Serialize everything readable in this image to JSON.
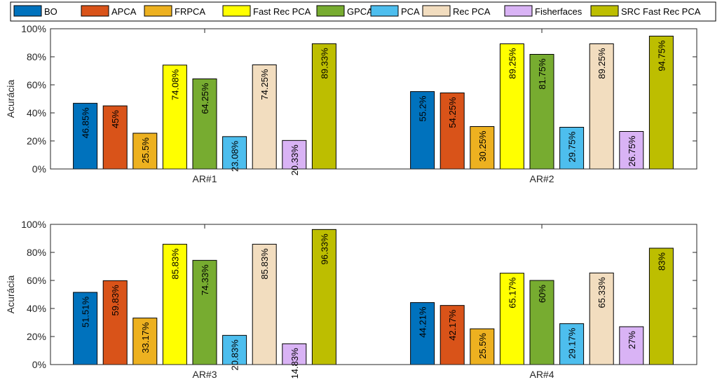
{
  "legend": {
    "position": "top",
    "entries": [
      {
        "name": "BO",
        "color": "#0072BD"
      },
      {
        "name": "APCA",
        "color": "#D95319"
      },
      {
        "name": "FRPCA",
        "color": "#EDB120"
      },
      {
        "name": "Fast Rec PCA",
        "color": "#FFFF00"
      },
      {
        "name": "GPCA",
        "color": "#77AC30"
      },
      {
        "name": "PCA",
        "color": "#4DBEEE"
      },
      {
        "name": "Rec PCA",
        "color": "#F2DDBF"
      },
      {
        "name": "Fisherfaces",
        "color": "#D9B3F5"
      },
      {
        "name": "SRC Fast Rec PCA",
        "color": "#BDBE00"
      }
    ]
  },
  "chart_data": [
    {
      "type": "bar",
      "ylabel": "Acurácia",
      "ylim": [
        0,
        100
      ],
      "yticks": [
        "0%",
        "20%",
        "40%",
        "60%",
        "80%",
        "100%"
      ],
      "categories": [
        "AR#1",
        "AR#2"
      ],
      "series": [
        {
          "name": "BO",
          "values": [
            46.85,
            55.2
          ],
          "labels": [
            "46.85%",
            "55.2%"
          ]
        },
        {
          "name": "APCA",
          "values": [
            45,
            54.25
          ],
          "labels": [
            "45%",
            "54.25%"
          ]
        },
        {
          "name": "FRPCA",
          "values": [
            25.5,
            30.25
          ],
          "labels": [
            "25.5%",
            "30.25%"
          ]
        },
        {
          "name": "Fast Rec PCA",
          "values": [
            74.08,
            89.25
          ],
          "labels": [
            "74.08%",
            "89.25%"
          ]
        },
        {
          "name": "GPCA",
          "values": [
            64.25,
            81.75
          ],
          "labels": [
            "64.25%",
            "81.75%"
          ]
        },
        {
          "name": "PCA",
          "values": [
            23.08,
            29.75
          ],
          "labels": [
            "23.08%",
            "29.75%"
          ]
        },
        {
          "name": "Rec PCA",
          "values": [
            74.25,
            89.25
          ],
          "labels": [
            "74.25%",
            "89.25%"
          ]
        },
        {
          "name": "Fisherfaces",
          "values": [
            20.33,
            26.75
          ],
          "labels": [
            "20.33%",
            "26.75%"
          ]
        },
        {
          "name": "SRC Fast Rec PCA",
          "values": [
            89.33,
            94.75
          ],
          "labels": [
            "89.33%",
            "94.75%"
          ]
        }
      ]
    },
    {
      "type": "bar",
      "ylabel": "Acurácia",
      "ylim": [
        0,
        100
      ],
      "yticks": [
        "0%",
        "20%",
        "40%",
        "60%",
        "80%",
        "100%"
      ],
      "categories": [
        "AR#3",
        "AR#4"
      ],
      "series": [
        {
          "name": "BO",
          "values": [
            51.51,
            44.21
          ],
          "labels": [
            "51.51%",
            "44.21%"
          ]
        },
        {
          "name": "APCA",
          "values": [
            59.83,
            42.17
          ],
          "labels": [
            "59.83%",
            "42.17%"
          ]
        },
        {
          "name": "FRPCA",
          "values": [
            33.17,
            25.5
          ],
          "labels": [
            "33.17%",
            "25.5%"
          ]
        },
        {
          "name": "Fast Rec PCA",
          "values": [
            85.83,
            65.17
          ],
          "labels": [
            "85.83%",
            "65.17%"
          ]
        },
        {
          "name": "GPCA",
          "values": [
            74.33,
            60
          ],
          "labels": [
            "74.33%",
            "60%"
          ]
        },
        {
          "name": "PCA",
          "values": [
            20.83,
            29.17
          ],
          "labels": [
            "20.83%",
            "29.17%"
          ]
        },
        {
          "name": "Rec PCA",
          "values": [
            85.83,
            65.33
          ],
          "labels": [
            "85.83%",
            "65.33%"
          ]
        },
        {
          "name": "Fisherfaces",
          "values": [
            14.83,
            27
          ],
          "labels": [
            "14.83%",
            "27%"
          ]
        },
        {
          "name": "SRC Fast Rec PCA",
          "values": [
            96.33,
            83
          ],
          "labels": [
            "96.33%",
            "83%"
          ]
        }
      ]
    }
  ]
}
